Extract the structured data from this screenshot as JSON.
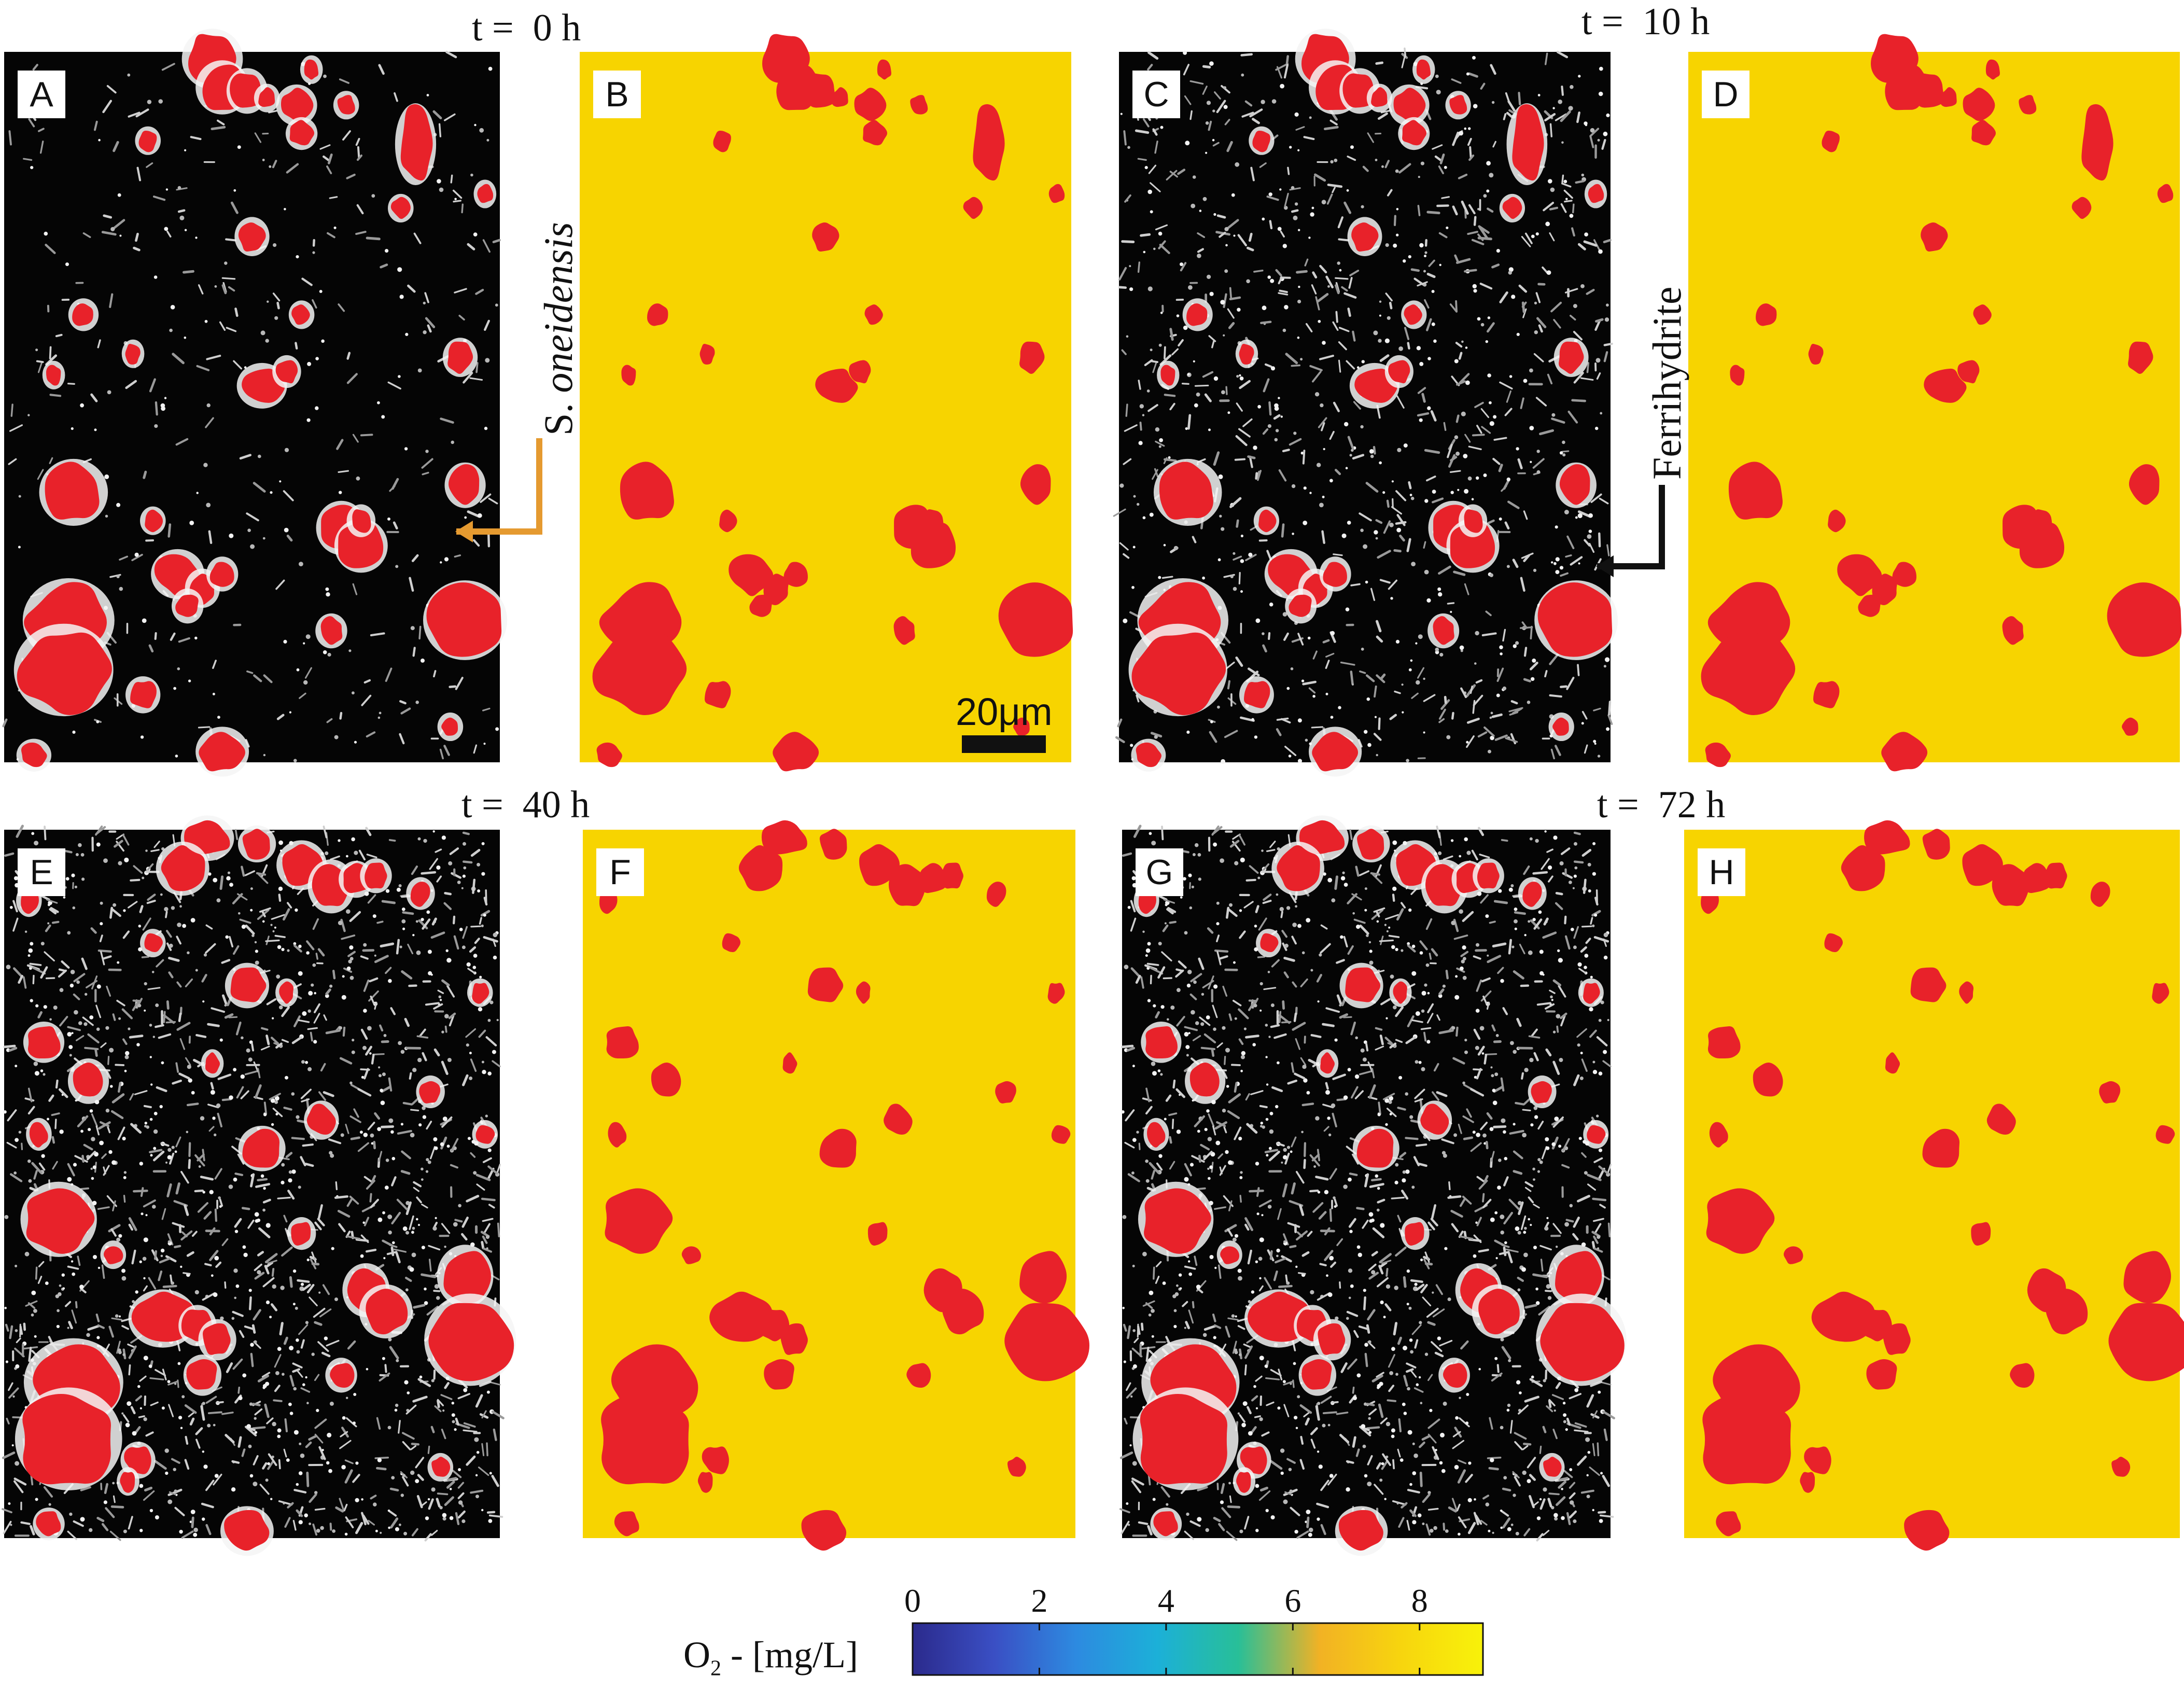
{
  "time_labels": {
    "t0": "t =  0 h",
    "t10": "t =  10 h",
    "t40": "t =  40 h",
    "t72": "t =  72 h"
  },
  "panels": {
    "A": "A",
    "B": "B",
    "C": "C",
    "D": "D",
    "E": "E",
    "F": "F",
    "G": "G",
    "H": "H"
  },
  "annotations": {
    "species_prefix": "S.",
    "species_rest": "oneidensis",
    "mineral": "Ferrihydrite"
  },
  "scale_bar": {
    "label": "20μm"
  },
  "colorbar": {
    "title_o": "O",
    "title_sub": "2",
    "title_rest": " - [mg/L]",
    "ticks": [
      "0",
      "2",
      "4",
      "6",
      "8"
    ],
    "range": [
      0,
      9
    ],
    "stops": [
      "#2b2a8c",
      "#3a4fc4",
      "#2d8ae0",
      "#1cb0d8",
      "#28bf98",
      "#f2b224",
      "#f7d50e",
      "#f8f20a"
    ]
  },
  "colors": {
    "particle_red": "#e8222a",
    "oxygen_field": "#f7d400",
    "arrow_orange": "#e59a30",
    "arrow_black": "#111111",
    "micrograph_bg": "#050505"
  }
}
